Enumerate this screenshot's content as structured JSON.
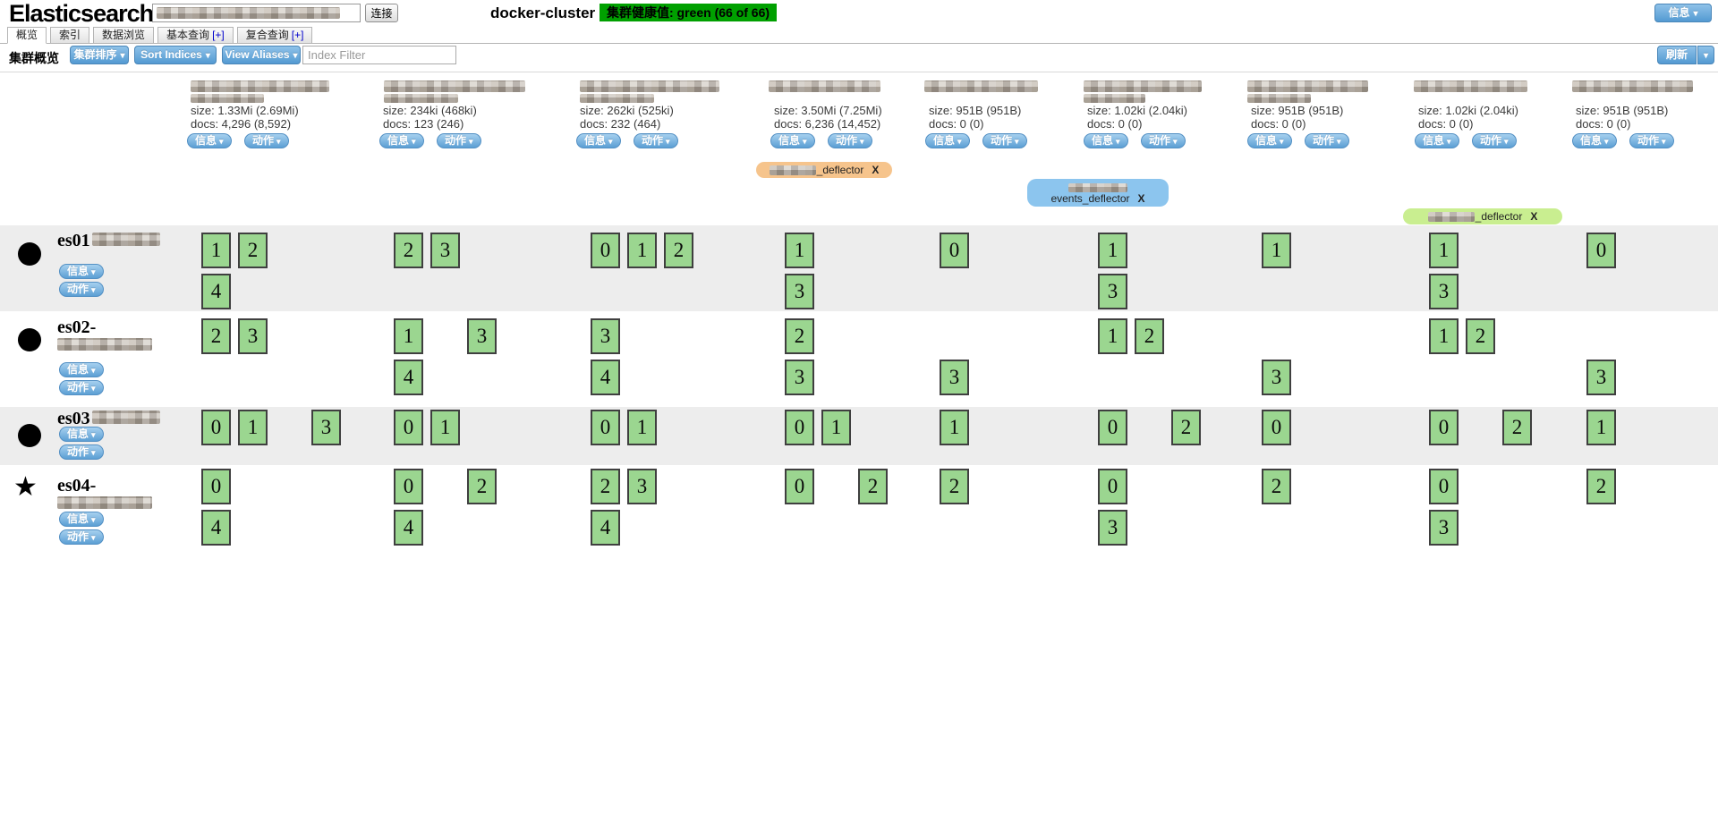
{
  "header": {
    "logo": "Elasticsearch",
    "connect_button": "连接",
    "cluster_name": "docker-cluster",
    "health_badge": "集群健康值: green (66 of 66)",
    "health_color": "#00a000",
    "info_button": "信息"
  },
  "tabs": [
    {
      "label": "概览",
      "suffix": "",
      "active": true
    },
    {
      "label": "索引",
      "suffix": "",
      "active": false
    },
    {
      "label": "数据浏览",
      "suffix": "",
      "active": false
    },
    {
      "label": "基本查询",
      "suffix": "[+]",
      "active": false
    },
    {
      "label": "复合查询",
      "suffix": "[+]",
      "active": false
    }
  ],
  "toolbar": {
    "title": "集群概览",
    "cluster_sort_button": "集群排序",
    "sort_indices_button": "Sort Indices",
    "view_aliases_button": "View Aliases",
    "index_filter_placeholder": "Index Filter",
    "refresh_button": "刷新"
  },
  "buttons": {
    "info": "信息",
    "action": "动作"
  },
  "index_columns": [
    {
      "size": "size: 1.33Mi (2.69Mi)",
      "docs": "docs: 4,296 (8,592)",
      "name_lines": 2
    },
    {
      "size": "size: 234ki (468ki)",
      "docs": "docs: 123 (246)",
      "name_lines": 2
    },
    {
      "size": "size: 262ki (525ki)",
      "docs": "docs: 232 (464)",
      "name_lines": 2
    },
    {
      "size": "size: 3.50Mi (7.25Mi)",
      "docs": "docs: 6,236 (14,452)",
      "name_lines": 1
    },
    {
      "size": "size: 951B (951B)",
      "docs": "docs: 0 (0)",
      "name_lines": 1
    },
    {
      "size": "size: 1.02ki (2.04ki)",
      "docs": "docs: 0 (0)",
      "name_lines": 2
    },
    {
      "size": "size: 951B (951B)",
      "docs": "docs: 0 (0)",
      "name_lines": 2
    },
    {
      "size": "size: 1.02ki (2.04ki)",
      "docs": "docs: 0 (0)",
      "name_lines": 1
    },
    {
      "size": "size: 951B (951B)",
      "docs": "docs: 0 (0)",
      "name_lines": 1
    }
  ],
  "aliases": [
    {
      "label": "_deflector",
      "close": "X",
      "color": "#f6c48c",
      "two_line": false
    },
    {
      "label": "events_deflector",
      "close": "X",
      "color": "#8cc5ee",
      "two_line": true
    },
    {
      "label": "_deflector",
      "close": "X",
      "color": "#c9ee90",
      "two_line": false
    }
  ],
  "nodes": [
    {
      "name": "es01",
      "icon": "dot",
      "inline_blur": true,
      "second_line_blur": false,
      "cells": [
        [
          [
            1,
            2
          ],
          [
            4
          ]
        ],
        [
          [
            2,
            3
          ]
        ],
        [
          [
            0,
            1,
            2
          ]
        ],
        [
          [
            1
          ],
          [
            3
          ]
        ],
        [
          [
            0
          ]
        ],
        [
          [
            1
          ],
          [
            3
          ]
        ],
        [
          [
            1
          ]
        ],
        [
          [
            1
          ],
          [
            3
          ]
        ],
        [
          [
            0
          ]
        ]
      ]
    },
    {
      "name": "es02-",
      "icon": "dot",
      "inline_blur": false,
      "second_line_blur": true,
      "cells": [
        [
          [
            2,
            3
          ]
        ],
        [
          [
            1,
            null,
            3
          ],
          [
            4
          ]
        ],
        [
          [
            3
          ],
          [
            4
          ]
        ],
        [
          [
            2
          ],
          [
            3
          ]
        ],
        [
          [],
          [
            3
          ]
        ],
        [
          [
            1,
            2
          ]
        ],
        [
          [],
          [
            3
          ]
        ],
        [
          [
            1,
            2
          ]
        ],
        [
          [],
          [
            3
          ]
        ]
      ]
    },
    {
      "name": "es03",
      "icon": "dot",
      "inline_blur": true,
      "second_line_blur": false,
      "cells": [
        [
          [
            0,
            1,
            null,
            3
          ]
        ],
        [
          [
            0,
            1
          ]
        ],
        [
          [
            0,
            1
          ]
        ],
        [
          [
            0,
            1
          ]
        ],
        [
          [
            1
          ]
        ],
        [
          [
            0,
            null,
            2
          ]
        ],
        [
          [
            0
          ]
        ],
        [
          [
            0,
            null,
            2
          ]
        ],
        [
          [
            1
          ]
        ]
      ]
    },
    {
      "name": "es04-",
      "icon": "star",
      "inline_blur": false,
      "second_line_blur": true,
      "cells": [
        [
          [
            0
          ],
          [
            4
          ]
        ],
        [
          [
            0,
            null,
            2
          ],
          [
            4
          ]
        ],
        [
          [
            2,
            3
          ],
          [
            4
          ]
        ],
        [
          [
            0,
            null,
            2
          ]
        ],
        [
          [
            2
          ]
        ],
        [
          [
            0
          ],
          [
            3
          ]
        ],
        [
          [
            2
          ]
        ],
        [
          [
            0
          ],
          [
            3
          ]
        ],
        [
          [
            2
          ]
        ]
      ]
    }
  ]
}
